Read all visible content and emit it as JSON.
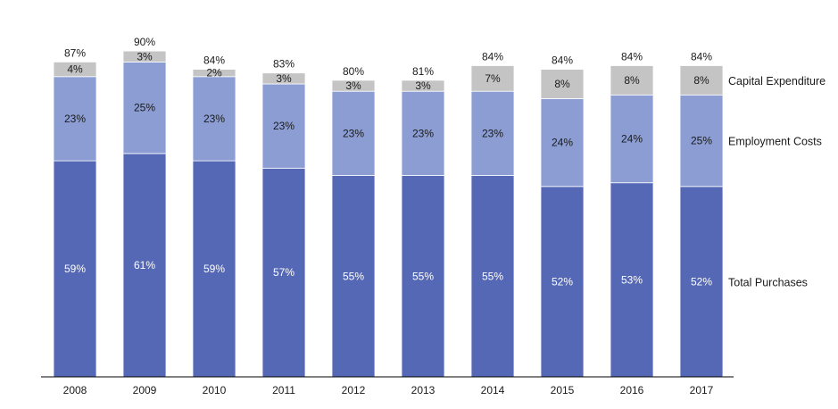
{
  "chart_data": {
    "type": "bar",
    "stacked": true,
    "title": "",
    "xlabel": "",
    "ylabel": "",
    "ylim": [
      0,
      100
    ],
    "grid": false,
    "legend_position": "right",
    "categories": [
      "2008",
      "2009",
      "2010",
      "2011",
      "2012",
      "2013",
      "2014",
      "2015",
      "2016",
      "2017"
    ],
    "series": [
      {
        "name": "Total Purchases",
        "color": "#5568b5",
        "label_color": "#ffffff",
        "values": [
          59,
          61,
          59,
          57,
          55,
          55,
          55,
          52,
          53,
          52
        ],
        "labels": [
          "59%",
          "61%",
          "59%",
          "57%",
          "55%",
          "55%",
          "55%",
          "52%",
          "53%",
          "52%"
        ]
      },
      {
        "name": "Employment Costs",
        "color": "#8b9dd3",
        "label_color": "#1a1a1a",
        "values": [
          23,
          25,
          23,
          23,
          23,
          23,
          23,
          24,
          24,
          25
        ],
        "labels": [
          "23%",
          "25%",
          "23%",
          "23%",
          "23%",
          "23%",
          "23%",
          "24%",
          "24%",
          "25%"
        ]
      },
      {
        "name": "Capital Expenditure",
        "color": "#c4c4c4",
        "label_color": "#1a1a1a",
        "values": [
          4,
          3,
          2,
          3,
          3,
          3,
          7,
          8,
          8,
          8
        ],
        "labels": [
          "4%",
          "3%",
          "2%",
          "3%",
          "3%",
          "3%",
          "7%",
          "8%",
          "8%",
          "8%"
        ]
      }
    ],
    "totals": [
      87,
      90,
      84,
      83,
      80,
      81,
      84,
      84,
      84,
      84
    ],
    "total_labels": [
      "87%",
      "90%",
      "84%",
      "83%",
      "80%",
      "81%",
      "84%",
      "84%",
      "84%",
      "84%"
    ]
  }
}
